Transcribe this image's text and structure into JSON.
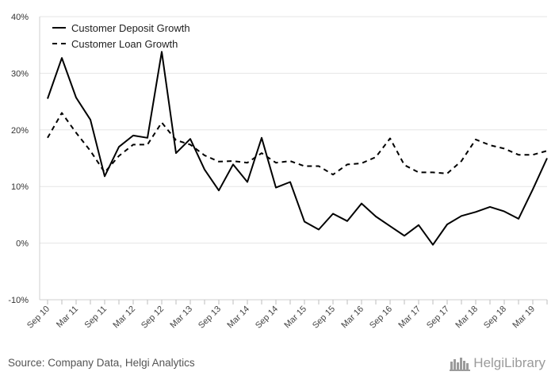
{
  "chart_data": {
    "type": "line",
    "categories": [
      "Sep 10",
      "Dec 10",
      "Mar 11",
      "Jun 11",
      "Sep 11",
      "Dec 11",
      "Mar 12",
      "Jun 12",
      "Sep 12",
      "Dec 12",
      "Mar 13",
      "Jun 13",
      "Sep 13",
      "Dec 13",
      "Mar 14",
      "Jun 14",
      "Sep 14",
      "Dec 14",
      "Mar 15",
      "Jun 15",
      "Sep 15",
      "Dec 15",
      "Mar 16",
      "Jun 16",
      "Sep 16",
      "Dec 16",
      "Mar 17",
      "Jun 17",
      "Sep 17",
      "Dec 17",
      "Mar 18",
      "Jun 18",
      "Sep 18",
      "Dec 18",
      "Mar 19",
      "Jun 19"
    ],
    "tick_labels": [
      "Sep 10",
      "Mar 11",
      "Sep 11",
      "Mar 12",
      "Sep 12",
      "Mar 13",
      "Sep 13",
      "Mar 14",
      "Sep 14",
      "Mar 15",
      "Sep 15",
      "Mar 16",
      "Sep 16",
      "Mar 17",
      "Sep 17",
      "Mar 18",
      "Sep 18",
      "Mar 19"
    ],
    "series": [
      {
        "name": "Customer Deposit Growth",
        "style": "solid",
        "values": [
          25.5,
          32.7,
          25.7,
          21.8,
          11.8,
          17.0,
          19.0,
          18.6,
          33.8,
          15.9,
          18.4,
          13.0,
          9.3,
          13.9,
          10.8,
          18.6,
          9.8,
          10.8,
          3.8,
          2.4,
          5.2,
          3.9,
          7.0,
          4.7,
          3.0,
          1.3,
          3.2,
          -0.3,
          3.3,
          4.8,
          5.5,
          6.4,
          5.6,
          4.3,
          9.5,
          15.0
        ]
      },
      {
        "name": "Customer Loan Growth",
        "style": "dashed",
        "values": [
          18.6,
          23.0,
          19.5,
          16.3,
          12.5,
          15.4,
          17.4,
          17.4,
          21.3,
          18.2,
          17.4,
          15.5,
          14.4,
          14.5,
          14.2,
          15.9,
          14.2,
          14.5,
          13.6,
          13.6,
          12.1,
          13.9,
          14.1,
          15.2,
          18.5,
          13.8,
          12.5,
          12.5,
          12.3,
          14.5,
          18.3,
          17.3,
          16.7,
          15.6,
          15.6,
          16.3
        ]
      }
    ],
    "y_ticks": [
      -10,
      0,
      10,
      20,
      30,
      40
    ],
    "y_tick_labels": [
      "-10%",
      "0%",
      "10%",
      "20%",
      "30%",
      "40%"
    ],
    "ylim": [
      -10,
      40
    ],
    "title": "",
    "xlabel": "",
    "ylabel": "",
    "grid": true,
    "legend_position": "top-left"
  },
  "footer": {
    "source": "Source: Company Data, Helgi Analytics",
    "brand": "HelgiLibrary"
  },
  "colors": {
    "line": "#000000",
    "grid": "#e6e6e6",
    "brand": "#9b9b9b"
  }
}
